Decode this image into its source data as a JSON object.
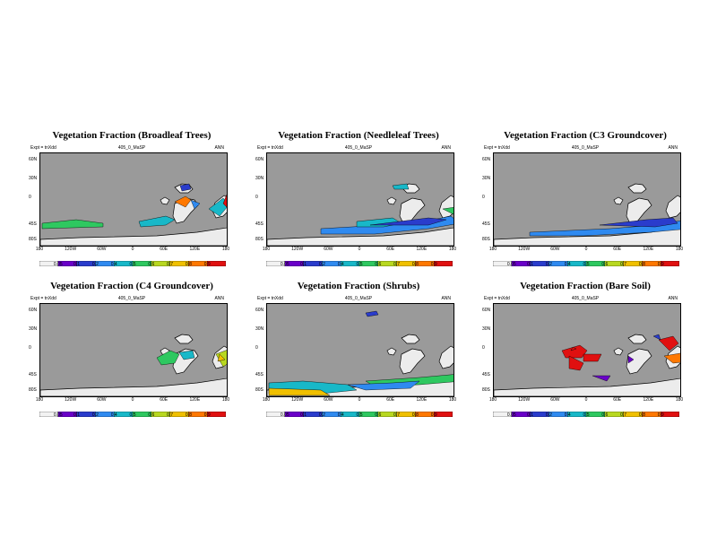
{
  "chart_data": [
    {
      "type": "heatmap",
      "title": "Vegetation Fraction (Broadleaf Trees)",
      "expt_label": "Expt = tnXdd",
      "run_label": "405_0_MaSP",
      "period": "ANN",
      "lat_labels": [
        "60N",
        "30N",
        "0",
        "45S",
        "80S"
      ],
      "lon_labels": [
        "180",
        "120W",
        "60W",
        "0",
        "60E",
        "120E",
        "180"
      ],
      "colorbar_ticks": [
        "0.05",
        "0.1",
        "0.2",
        "0.4",
        "0.5",
        "0.6",
        "0.7",
        "0.8",
        "0.9"
      ]
    },
    {
      "type": "heatmap",
      "title": "Vegetation Fraction (Needleleaf Trees)",
      "expt_label": "Expt = tnXdd",
      "run_label": "405_0_MaSP",
      "period": "ANN",
      "lat_labels": [
        "60N",
        "30N",
        "0",
        "45S",
        "80S"
      ],
      "lon_labels": [
        "180",
        "120W",
        "60W",
        "0",
        "60E",
        "120E",
        "180"
      ],
      "colorbar_ticks": [
        "0.05",
        "0.1",
        "0.2",
        "0.4",
        "0.5",
        "0.6",
        "0.7",
        "0.8",
        "0.9"
      ]
    },
    {
      "type": "heatmap",
      "title": "Vegetation Fraction (C3 Groundcover)",
      "expt_label": "Expt = tnXdd",
      "run_label": "405_0_MaSP",
      "period": "ANN",
      "lat_labels": [
        "60N",
        "30N",
        "0",
        "45S",
        "80S"
      ],
      "lon_labels": [
        "180",
        "120W",
        "60W",
        "0",
        "60E",
        "120E",
        "180"
      ],
      "colorbar_ticks": [
        "0.05",
        "0.1",
        "0.2",
        "0.4",
        "0.5",
        "0.6",
        "0.7",
        "0.8",
        "0.9"
      ]
    },
    {
      "type": "heatmap",
      "title": "Vegetation Fraction (C4 Groundcover)",
      "expt_label": "Expt = tnXdd",
      "run_label": "405_0_MaSP",
      "period": "ANN",
      "lat_labels": [
        "60N",
        "30N",
        "0",
        "45S",
        "80S"
      ],
      "lon_labels": [
        "180",
        "120W",
        "60W",
        "0",
        "60E",
        "120E",
        "180"
      ],
      "colorbar_ticks": [
        "0.05",
        "0.1",
        "0.2",
        "0.4",
        "0.5",
        "0.6",
        "0.7",
        "0.8",
        "0.9"
      ]
    },
    {
      "type": "heatmap",
      "title": "Vegetation Fraction (Shrubs)",
      "expt_label": "Expt = tnXdd",
      "run_label": "405_0_MaSP",
      "period": "ANN",
      "lat_labels": [
        "60N",
        "30N",
        "0",
        "45S",
        "80S"
      ],
      "lon_labels": [
        "180",
        "120W",
        "60W",
        "0",
        "60E",
        "120E",
        "180"
      ],
      "colorbar_ticks": [
        "0.05",
        "0.1",
        "0.2",
        "0.4",
        "0.5",
        "0.6",
        "0.7",
        "0.8",
        "0.9"
      ]
    },
    {
      "type": "heatmap",
      "title": "Vegetation Fraction (Bare Soil)",
      "expt_label": "Expt = tnXdd",
      "run_label": "405_0_MaSP",
      "period": "ANN",
      "lat_labels": [
        "60N",
        "30N",
        "0",
        "45S",
        "80S"
      ],
      "lon_labels": [
        "180",
        "120W",
        "60W",
        "0",
        "60E",
        "120E",
        "180"
      ],
      "colorbar_ticks": [
        "0.05",
        "0.1",
        "0.2",
        "0.4",
        "0.5",
        "0.6",
        "0.7",
        "0.8",
        "0.9"
      ]
    }
  ],
  "colors": {
    "ocean": "#9a9a9a",
    "land_none": "#ececec",
    "colorbar": [
      "#f2f2f2",
      "#6a00c8",
      "#2a3ccc",
      "#2f8af0",
      "#18b8c8",
      "#2ec860",
      "#b8d820",
      "#f0c000",
      "#ff7800",
      "#e01010"
    ]
  }
}
